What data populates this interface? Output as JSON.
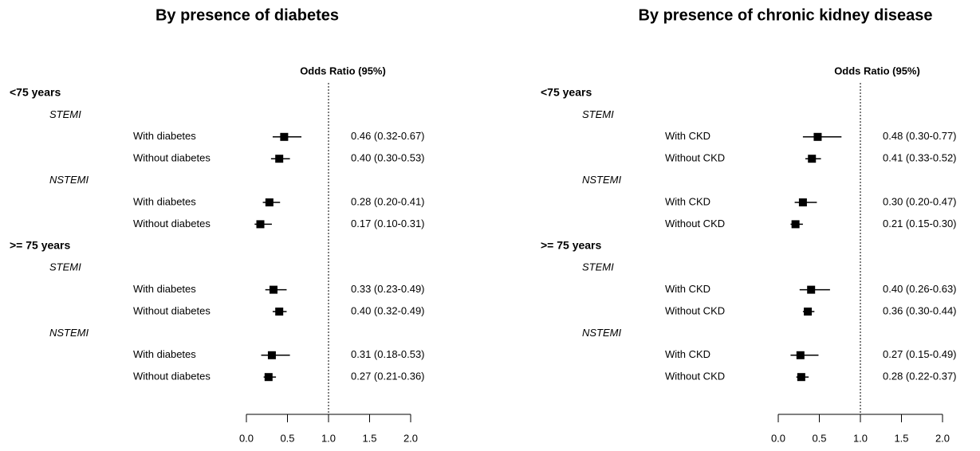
{
  "chart_data": [
    {
      "type": "forest",
      "title": "By presence of diabetes",
      "header": "Odds Ratio (95%)",
      "xlim": [
        0,
        2
      ],
      "xticks": [
        {
          "value": 0,
          "label": "0.0"
        },
        0.5,
        {
          "value": 1,
          "label": "1.0"
        },
        1.5,
        {
          "value": 2,
          "label": "2.0"
        }
      ],
      "reference_line": 1,
      "color": "#000000",
      "rows": [
        {
          "label": "<75 years",
          "level": 0
        },
        {
          "label": "STEMI",
          "level": 1
        },
        {
          "label": "With diabetes",
          "level": 2,
          "value": 0.46,
          "low": 0.32,
          "high": 0.67,
          "value_label": "0.46 (0.32-0.67)"
        },
        {
          "label": "Without diabetes",
          "level": 2,
          "value": 0.4,
          "low": 0.3,
          "high": 0.53,
          "value_label": "0.40 (0.30-0.53)"
        },
        {
          "label": "NSTEMI",
          "level": 1
        },
        {
          "label": "With diabetes",
          "level": 2,
          "value": 0.28,
          "low": 0.2,
          "high": 0.41,
          "value_label": "0.28 (0.20-0.41)"
        },
        {
          "label": "Without diabetes",
          "level": 2,
          "value": 0.17,
          "low": 0.1,
          "high": 0.31,
          "value_label": "0.17 (0.10-0.31)"
        },
        {
          "label": ">= 75 years",
          "level": 0
        },
        {
          "label": "STEMI",
          "level": 1
        },
        {
          "label": "With diabetes",
          "level": 2,
          "value": 0.33,
          "low": 0.23,
          "high": 0.49,
          "value_label": "0.33 (0.23-0.49)"
        },
        {
          "label": "Without diabetes",
          "level": 2,
          "value": 0.4,
          "low": 0.32,
          "high": 0.49,
          "value_label": "0.40 (0.32-0.49)"
        },
        {
          "label": "NSTEMI",
          "level": 1
        },
        {
          "label": "With diabetes",
          "level": 2,
          "value": 0.31,
          "low": 0.18,
          "high": 0.53,
          "value_label": "0.31 (0.18-0.53)"
        },
        {
          "label": "Without diabetes",
          "level": 2,
          "value": 0.27,
          "low": 0.21,
          "high": 0.36,
          "value_label": "0.27 (0.21-0.36)"
        }
      ]
    },
    {
      "type": "forest",
      "title": "By presence of chronic kidney disease",
      "header": "Odds Ratio (95%)",
      "xlim": [
        0,
        2
      ],
      "xticks": [
        {
          "value": 0,
          "label": "0.0"
        },
        0.5,
        {
          "value": 1,
          "label": "1.0"
        },
        1.5,
        {
          "value": 2,
          "label": "2.0"
        }
      ],
      "reference_line": 1,
      "color": "#000000",
      "rows": [
        {
          "label": "<75 years",
          "level": 0
        },
        {
          "label": "STEMI",
          "level": 1
        },
        {
          "label": "With CKD",
          "level": 2,
          "value": 0.48,
          "low": 0.3,
          "high": 0.77,
          "value_label": "0.48 (0.30-0.77)"
        },
        {
          "label": "Without CKD",
          "level": 2,
          "value": 0.41,
          "low": 0.33,
          "high": 0.52,
          "value_label": "0.41 (0.33-0.52)"
        },
        {
          "label": "NSTEMI",
          "level": 1
        },
        {
          "label": "With CKD",
          "level": 2,
          "value": 0.3,
          "low": 0.2,
          "high": 0.47,
          "value_label": "0.30 (0.20-0.47)"
        },
        {
          "label": "Without CKD",
          "level": 2,
          "value": 0.21,
          "low": 0.15,
          "high": 0.3,
          "value_label": "0.21 (0.15-0.30)"
        },
        {
          "label": ">= 75 years",
          "level": 0
        },
        {
          "label": "STEMI",
          "level": 1
        },
        {
          "label": "With CKD",
          "level": 2,
          "value": 0.4,
          "low": 0.26,
          "high": 0.63,
          "value_label": "0.40 (0.26-0.63)"
        },
        {
          "label": "Without CKD",
          "level": 2,
          "value": 0.36,
          "low": 0.3,
          "high": 0.44,
          "value_label": "0.36 (0.30-0.44)"
        },
        {
          "label": "NSTEMI",
          "level": 1
        },
        {
          "label": "With CKD",
          "level": 2,
          "value": 0.27,
          "low": 0.15,
          "high": 0.49,
          "value_label": "0.27 (0.15-0.49)"
        },
        {
          "label": "Without CKD",
          "level": 2,
          "value": 0.28,
          "low": 0.22,
          "high": 0.37,
          "value_label": "0.28 (0.22-0.37)"
        }
      ]
    }
  ]
}
